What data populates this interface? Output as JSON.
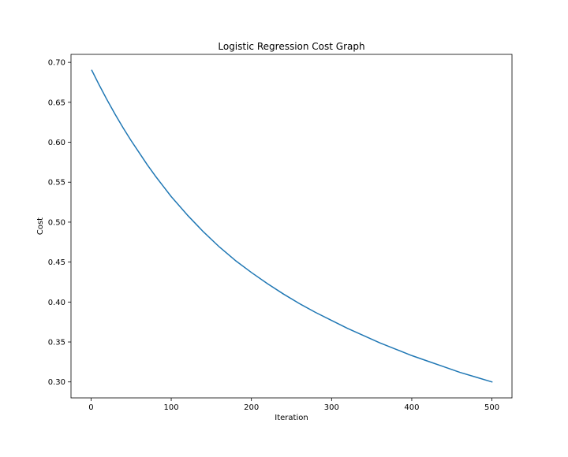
{
  "chart_data": {
    "type": "line",
    "title": "Logistic Regression Cost Graph",
    "xlabel": "Iteration",
    "ylabel": "Cost",
    "xlim": [
      -25,
      525
    ],
    "ylim": [
      0.28,
      0.71
    ],
    "xticks": [
      0,
      100,
      200,
      300,
      400,
      500
    ],
    "xtick_labels": [
      "0",
      "100",
      "200",
      "300",
      "400",
      "500"
    ],
    "yticks": [
      0.3,
      0.35,
      0.4,
      0.45,
      0.5,
      0.55,
      0.6,
      0.65,
      0.7
    ],
    "ytick_labels": [
      "0.30",
      "0.35",
      "0.40",
      "0.45",
      "0.50",
      "0.55",
      "0.60",
      "0.65",
      "0.70"
    ],
    "grid": false,
    "series": [
      {
        "color": "#1f77b4",
        "x": [
          1,
          10,
          20,
          30,
          40,
          50,
          60,
          70,
          80,
          90,
          100,
          120,
          140,
          160,
          180,
          200,
          220,
          240,
          260,
          280,
          300,
          320,
          340,
          360,
          380,
          400,
          420,
          440,
          460,
          480,
          500
        ],
        "y": [
          0.69,
          0.672,
          0.653,
          0.635,
          0.618,
          0.602,
          0.587,
          0.572,
          0.558,
          0.545,
          0.532,
          0.509,
          0.488,
          0.469,
          0.452,
          0.437,
          0.423,
          0.41,
          0.398,
          0.387,
          0.377,
          0.367,
          0.358,
          0.349,
          0.341,
          0.333,
          0.326,
          0.319,
          0.312,
          0.306,
          0.3
        ]
      }
    ]
  }
}
